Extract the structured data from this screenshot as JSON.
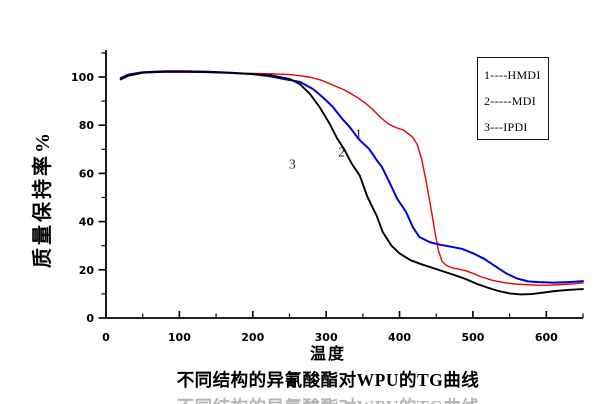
{
  "chart_data": {
    "type": "line",
    "title": "不同结构的异氰酸酯对WPU的TG曲线",
    "xlabel": "温度",
    "ylabel": "质量保持率%",
    "xlim": [
      0,
      650
    ],
    "ylim": [
      0,
      111
    ],
    "grid": false,
    "legend_position": "top-right",
    "legend_entries": [
      "1----HMDI",
      "2-----MDI",
      "3---IPDI"
    ],
    "x_ticks": [
      0,
      100,
      200,
      300,
      400,
      500,
      600
    ],
    "x_minor_ticks": [
      50,
      150,
      250,
      350,
      450,
      550,
      650
    ],
    "y_ticks": [
      0,
      20,
      40,
      60,
      80,
      100
    ],
    "y_minor_ticks": [
      10,
      30,
      50,
      70,
      90,
      110
    ],
    "annotations": [
      {
        "text": "1",
        "x": 344,
        "y": 74.5
      },
      {
        "text": "2",
        "x": 321,
        "y": 67
      },
      {
        "text": "3",
        "x": 254,
        "y": 62
      }
    ],
    "series": [
      {
        "name": "HMDI",
        "number": 1,
        "color": "#ee0000",
        "line_width": 1.4,
        "points": [
          [
            20,
            99.3
          ],
          [
            30,
            100.8
          ],
          [
            50,
            101.8
          ],
          [
            80,
            102
          ],
          [
            110,
            102
          ],
          [
            140,
            101.9
          ],
          [
            170,
            101.7
          ],
          [
            200,
            101.5
          ],
          [
            230,
            101.3
          ],
          [
            250,
            101
          ],
          [
            265,
            100.5
          ],
          [
            280,
            99.8
          ],
          [
            295,
            98.5
          ],
          [
            310,
            96.5
          ],
          [
            322,
            95
          ],
          [
            333,
            93.2
          ],
          [
            344,
            91.2
          ],
          [
            355,
            88.8
          ],
          [
            365,
            86
          ],
          [
            375,
            83
          ],
          [
            385,
            80.5
          ],
          [
            395,
            79
          ],
          [
            405,
            78
          ],
          [
            412,
            76.5
          ],
          [
            418,
            75
          ],
          [
            424,
            72
          ],
          [
            430,
            66
          ],
          [
            436,
            57
          ],
          [
            442,
            47
          ],
          [
            448,
            36
          ],
          [
            453,
            28
          ],
          [
            458,
            23.5
          ],
          [
            464,
            21.8
          ],
          [
            472,
            20.8
          ],
          [
            482,
            20.2
          ],
          [
            492,
            19.4
          ],
          [
            502,
            18.3
          ],
          [
            512,
            17
          ],
          [
            527,
            15.6
          ],
          [
            542,
            14.7
          ],
          [
            557,
            14.1
          ],
          [
            572,
            13.8
          ],
          [
            587,
            13.6
          ],
          [
            602,
            13.6
          ],
          [
            622,
            13.9
          ],
          [
            638,
            14.2
          ],
          [
            650,
            14.6
          ]
        ]
      },
      {
        "name": "MDI",
        "number": 2,
        "color": "#0000dd",
        "line_width": 2,
        "points": [
          [
            20,
            99.5
          ],
          [
            30,
            101
          ],
          [
            50,
            102
          ],
          [
            80,
            102.4
          ],
          [
            110,
            102.4
          ],
          [
            140,
            102.2
          ],
          [
            170,
            101.8
          ],
          [
            200,
            101.2
          ],
          [
            225,
            100.2
          ],
          [
            245,
            99
          ],
          [
            264,
            98
          ],
          [
            282,
            95
          ],
          [
            295,
            91.7
          ],
          [
            309,
            87.6
          ],
          [
            322,
            82.6
          ],
          [
            332,
            79.3
          ],
          [
            345,
            74
          ],
          [
            359,
            70
          ],
          [
            370,
            65
          ],
          [
            376,
            62.7
          ],
          [
            386,
            56.4
          ],
          [
            397,
            49.4
          ],
          [
            409,
            44
          ],
          [
            418,
            37.8
          ],
          [
            427,
            33.6
          ],
          [
            441,
            31.5
          ],
          [
            455,
            30.4
          ],
          [
            470,
            29.6
          ],
          [
            485,
            28.7
          ],
          [
            500,
            26.9
          ],
          [
            515,
            24.6
          ],
          [
            530,
            21.6
          ],
          [
            545,
            18.6
          ],
          [
            560,
            16.4
          ],
          [
            575,
            15.2
          ],
          [
            590,
            14.9
          ],
          [
            610,
            14.7
          ],
          [
            630,
            14.9
          ],
          [
            650,
            15.3
          ]
        ]
      },
      {
        "name": "IPDI",
        "number": 3,
        "color": "#000000",
        "line_width": 1.9,
        "points": [
          [
            20,
            99
          ],
          [
            30,
            100.5
          ],
          [
            50,
            101.8
          ],
          [
            80,
            102.2
          ],
          [
            110,
            102.2
          ],
          [
            140,
            102
          ],
          [
            170,
            101.7
          ],
          [
            200,
            101.2
          ],
          [
            225,
            100.7
          ],
          [
            250,
            99.2
          ],
          [
            264,
            97.1
          ],
          [
            278,
            93
          ],
          [
            291,
            87.6
          ],
          [
            305,
            80.5
          ],
          [
            315,
            74.5
          ],
          [
            325,
            69.8
          ],
          [
            335,
            64
          ],
          [
            346,
            59
          ],
          [
            356,
            50.5
          ],
          [
            369,
            42.3
          ],
          [
            377,
            35.7
          ],
          [
            389,
            30
          ],
          [
            400,
            26.8
          ],
          [
            415,
            24
          ],
          [
            430,
            22.3
          ],
          [
            445,
            20.8
          ],
          [
            460,
            19.3
          ],
          [
            475,
            17.8
          ],
          [
            490,
            16.2
          ],
          [
            505,
            14.2
          ],
          [
            520,
            12.6
          ],
          [
            535,
            11.2
          ],
          [
            550,
            10.2
          ],
          [
            565,
            9.8
          ],
          [
            580,
            9.9
          ],
          [
            595,
            10.5
          ],
          [
            612,
            11.2
          ],
          [
            632,
            11.7
          ],
          [
            650,
            12
          ]
        ]
      }
    ]
  }
}
